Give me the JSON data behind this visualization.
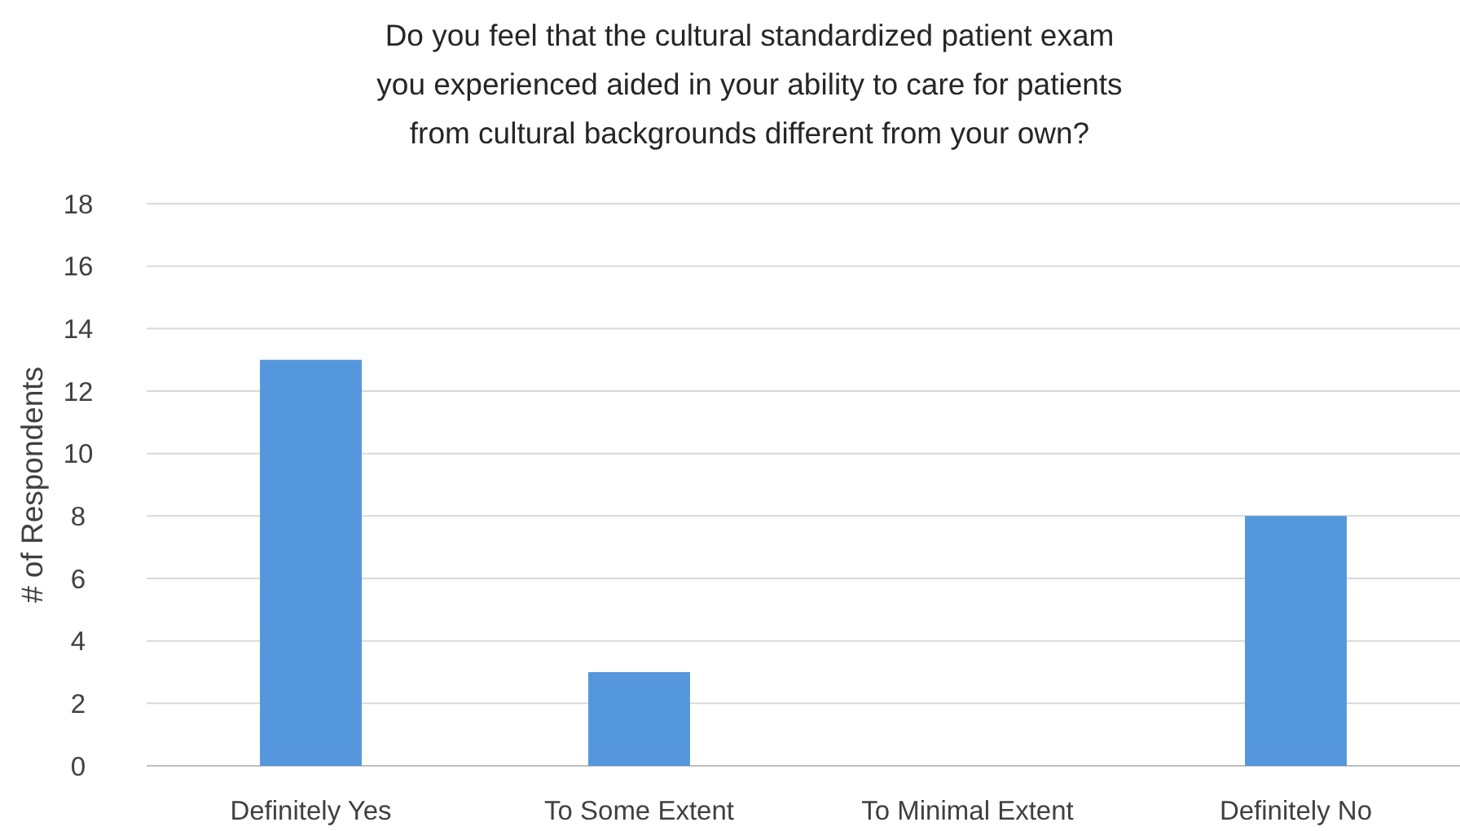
{
  "chart_data": {
    "type": "bar",
    "title": "Do you feel that the cultural standardized patient exam you experienced aided in your ability to care for patients from cultural backgrounds different from your own?",
    "ylabel": "# of Respondents",
    "categories": [
      "Definitely Yes",
      "To Some Extent",
      "To Minimal Extent",
      "Definitely No"
    ],
    "values": [
      13,
      3,
      0,
      8
    ],
    "color": "#5597dc",
    "ylim": [
      0,
      18
    ],
    "yticks": [
      0,
      2,
      4,
      6,
      8,
      10,
      12,
      14,
      16,
      18
    ],
    "grid": "y"
  }
}
